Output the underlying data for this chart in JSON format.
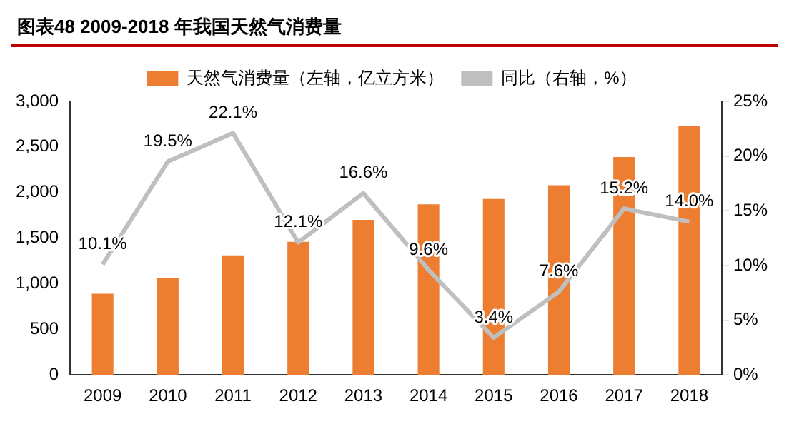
{
  "chart_data": {
    "type": "bar",
    "title": "图表48    2009-2018 年我国天然气消费量",
    "categories": [
      "2009",
      "2010",
      "2011",
      "2012",
      "2013",
      "2014",
      "2015",
      "2016",
      "2017",
      "2018"
    ],
    "series": [
      {
        "name": "天然气消费量（左轴，亿立方米）",
        "color": "#ed7d31",
        "values": [
          890,
          1060,
          1310,
          1460,
          1700,
          1870,
          1930,
          2080,
          2390,
          2730
        ]
      },
      {
        "name": "同比（右轴，%）",
        "type": "line",
        "axis": "y2",
        "color": "#bfbfbf",
        "marker": "none",
        "values": [
          10.1,
          19.5,
          22.1,
          12.1,
          16.6,
          9.6,
          3.4,
          7.6,
          15.2,
          14.0
        ],
        "value_labels": [
          "10.1%",
          "19.5%",
          "22.1%",
          "12.1%",
          "16.6%",
          "9.6%",
          "3.4%",
          "7.6%",
          "15.2%",
          "14.0%"
        ]
      }
    ],
    "ylim": [
      0,
      3000
    ],
    "yticks": [
      {
        "value": 0,
        "label": "0"
      },
      {
        "value": 500,
        "label": "500"
      },
      {
        "value": 1000,
        "label": "1,000"
      },
      {
        "value": 1500,
        "label": "1,500"
      },
      {
        "value": 2000,
        "label": "2,000"
      },
      {
        "value": 2500,
        "label": "2,500"
      },
      {
        "value": 3000,
        "label": "3,000"
      }
    ],
    "y2lim": [
      0,
      25
    ],
    "y2ticks": [
      {
        "value": 0,
        "label": "0%"
      },
      {
        "value": 5,
        "label": "5%"
      },
      {
        "value": 10,
        "label": "10%"
      },
      {
        "value": 15,
        "label": "15%"
      },
      {
        "value": 20,
        "label": "20%"
      },
      {
        "value": 25,
        "label": "25%"
      }
    ],
    "grid": false,
    "legend": "top"
  }
}
